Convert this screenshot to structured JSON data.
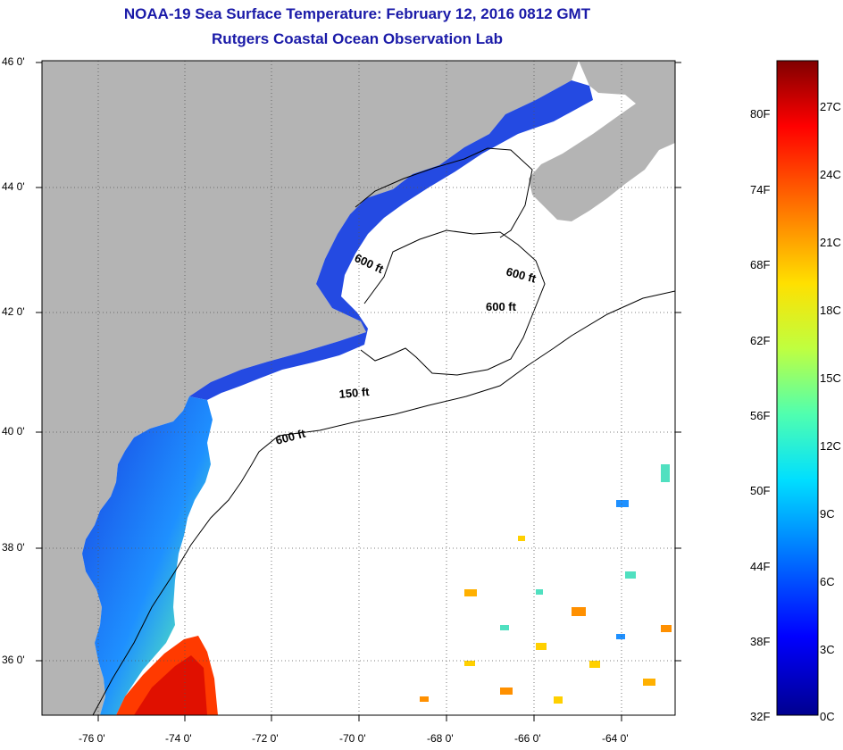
{
  "header": {
    "title": "NOAA-19 Sea Surface Temperature:  February 12, 2016 0812 GMT",
    "subtitle": "Rutgers Coastal Ocean Observation Lab"
  },
  "axes": {
    "lat_ticks": [
      "46 0'",
      "44 0'",
      "42 0'",
      "40 0'",
      "38 0'",
      "36 0'"
    ],
    "lon_ticks": [
      "-76 0'",
      "-74 0'",
      "-72 0'",
      "-70 0'",
      "-68 0'",
      "-66 0'",
      "-64 0'"
    ]
  },
  "contours": {
    "labels": [
      "600 ft",
      "600 ft",
      "600 ft",
      "150 ft",
      "600 ft"
    ]
  },
  "colorbar": {
    "fahrenheit": [
      "80F",
      "74F",
      "68F",
      "62F",
      "56F",
      "50F",
      "44F",
      "38F",
      "32F"
    ],
    "celsius": [
      "27C",
      "24C",
      "21C",
      "18C",
      "15C",
      "12C",
      "9C",
      "6C",
      "3C",
      "0C"
    ],
    "colors": [
      "#00008f",
      "#0000ff",
      "#0070ff",
      "#00dfff",
      "#50ffaf",
      "#bfff40",
      "#ffe000",
      "#ff7000",
      "#ff0000",
      "#800000"
    ]
  },
  "map": {
    "land_color": "#b4b4b4",
    "water_color": "#ffffff",
    "cold_water_color": "#1840e0"
  }
}
